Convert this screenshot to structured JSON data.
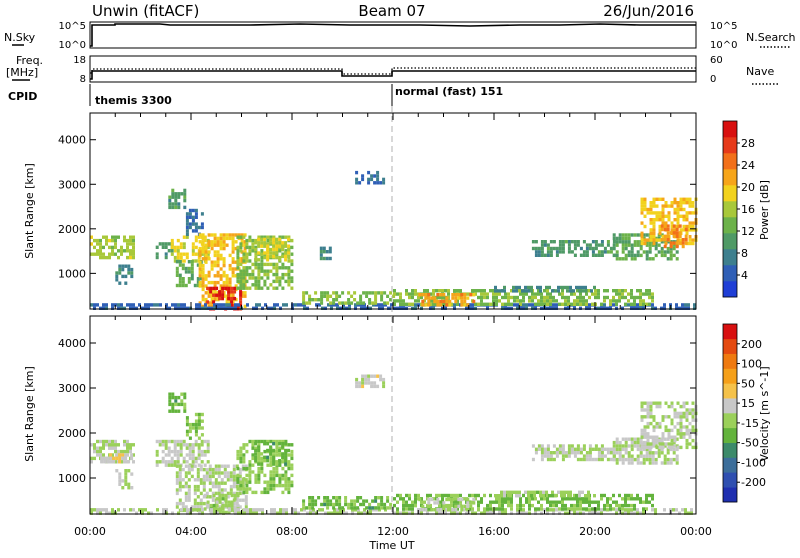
{
  "header": {
    "radar": "Unwin (fitACF)",
    "beam": "Beam 07",
    "date": "26/Jun/2016"
  },
  "strips": {
    "nsky_label": "N.Sky",
    "nsky_ticks": [
      "10^5",
      "10^0"
    ],
    "nsearch_label": "N.Search",
    "nsearch_ticks": [
      "10^5",
      "10^0"
    ],
    "freq_label_1": "Freq.",
    "freq_label_2": "[MHz]",
    "freq_ticks": [
      "18",
      "8"
    ],
    "nave_label": "Nave",
    "nave_ticks": [
      "60",
      "0"
    ],
    "cpid_label": "CPID",
    "cpid_segments": [
      "themis 3300",
      "normal (fast) 151"
    ]
  },
  "time_axis": {
    "ticks": [
      "00:00",
      "04:00",
      "08:00",
      "12:00",
      "16:00",
      "20:00",
      "00:00"
    ],
    "label": "Time UT"
  },
  "colors": {
    "power_scale": [
      "#1f3fd6",
      "#2f5fb6",
      "#3d7f8e",
      "#4f9a66",
      "#6cb24a",
      "#a8c83a",
      "#f2d21e",
      "#f6a51a",
      "#f2701a",
      "#e63a1a",
      "#d81010"
    ],
    "velocity_scale": [
      "#1f2fb0",
      "#2f4fb0",
      "#3c6e9a",
      "#3c8a6a",
      "#63b33c",
      "#9bd05a",
      "#c8c8c8",
      "#f5c24a",
      "#f5a01a",
      "#ef7a10",
      "#e44a10",
      "#d81010"
    ]
  },
  "chart_data": [
    {
      "type": "heatmap",
      "panel": "power",
      "ylabel": "Slant Range [km]",
      "yticks": [
        "4000",
        "3000",
        "2000",
        "1000"
      ],
      "ylim": [
        200,
        4600
      ],
      "x_range_hours": [
        0,
        24
      ],
      "colorbar_label": "Power [dB]",
      "colorbar_ticks": [
        "28",
        "24",
        "20",
        "16",
        "12",
        "8",
        "4"
      ],
      "colorbar_range": [
        0,
        32
      ],
      "regions": [
        {
          "t": [
            0.0,
            1.7
          ],
          "r": [
            1350,
            1850
          ],
          "v": 16
        },
        {
          "t": [
            1.0,
            1.6
          ],
          "r": [
            800,
            1200
          ],
          "v": 8
        },
        {
          "t": [
            2.6,
            3.3
          ],
          "r": [
            1350,
            1700
          ],
          "v": 10
        },
        {
          "t": [
            3.2,
            4.7
          ],
          "r": [
            1250,
            1850
          ],
          "v": 18
        },
        {
          "t": [
            3.4,
            4.4
          ],
          "r": [
            700,
            1300
          ],
          "v": 12
        },
        {
          "t": [
            3.8,
            4.4
          ],
          "r": [
            1850,
            2450
          ],
          "v": 6
        },
        {
          "t": [
            4.3,
            6.2
          ],
          "r": [
            250,
            1900
          ],
          "v": 20
        },
        {
          "t": [
            4.6,
            6.0
          ],
          "r": [
            200,
            700
          ],
          "v": 30
        },
        {
          "t": [
            5.8,
            8.0
          ],
          "r": [
            700,
            1850
          ],
          "v": 14
        },
        {
          "t": [
            6.5,
            7.9
          ],
          "r": [
            1300,
            1800
          ],
          "v": 17
        },
        {
          "t": [
            0.0,
            24.0
          ],
          "r": [
            200,
            330
          ],
          "v": 5
        },
        {
          "t": [
            8.4,
            12.0
          ],
          "r": [
            300,
            600
          ],
          "v": 14
        },
        {
          "t": [
            12.0,
            22.3
          ],
          "r": [
            300,
            650
          ],
          "v": 14
        },
        {
          "t": [
            13.0,
            15.2
          ],
          "r": [
            330,
            560
          ],
          "v": 22
        },
        {
          "t": [
            16.0,
            20.0
          ],
          "r": [
            600,
            720
          ],
          "v": 8
        },
        {
          "t": [
            17.5,
            20.8
          ],
          "r": [
            1400,
            1750
          ],
          "v": 10
        },
        {
          "t": [
            20.7,
            23.2
          ],
          "r": [
            1300,
            1900
          ],
          "v": 12
        },
        {
          "t": [
            21.8,
            24.0
          ],
          "r": [
            1650,
            2700
          ],
          "v": 20
        },
        {
          "t": [
            22.6,
            23.6
          ],
          "r": [
            1600,
            2100
          ],
          "v": 24
        },
        {
          "t": [
            9.1,
            9.5
          ],
          "r": [
            1350,
            1600
          ],
          "v": 8
        },
        {
          "t": [
            10.5,
            11.6
          ],
          "r": [
            3050,
            3300
          ],
          "v": 6
        },
        {
          "t": [
            3.1,
            3.8
          ],
          "r": [
            2500,
            2900
          ],
          "v": 10
        }
      ]
    },
    {
      "type": "heatmap",
      "panel": "velocity",
      "ylabel": "Slant Range [km]",
      "yticks": [
        "4000",
        "3000",
        "2000",
        "1000"
      ],
      "ylim": [
        200,
        4600
      ],
      "x_range_hours": [
        0,
        24
      ],
      "colorbar_label": "Velocity [m s^-1]",
      "colorbar_ticks": [
        "200",
        "100",
        "50",
        "15",
        "-15",
        "-50",
        "-100",
        "-200"
      ],
      "colorbar_range": [
        -250,
        250
      ],
      "regions": [
        {
          "t": [
            0.0,
            1.7
          ],
          "r": [
            1350,
            1850
          ],
          "v": 0
        },
        {
          "t": [
            0.4,
            1.6
          ],
          "r": [
            1350,
            1550
          ],
          "v": 35
        },
        {
          "t": [
            1.0,
            1.6
          ],
          "r": [
            800,
            1200
          ],
          "v": 0
        },
        {
          "t": [
            2.6,
            4.7
          ],
          "r": [
            1250,
            1850
          ],
          "v": 5
        },
        {
          "t": [
            3.4,
            6.2
          ],
          "r": [
            250,
            1300
          ],
          "v": 0
        },
        {
          "t": [
            4.5,
            6.0
          ],
          "r": [
            250,
            650
          ],
          "v": -15
        },
        {
          "t": [
            3.8,
            4.4
          ],
          "r": [
            1850,
            2450
          ],
          "v": -40
        },
        {
          "t": [
            5.8,
            8.0
          ],
          "r": [
            700,
            1850
          ],
          "v": -30
        },
        {
          "t": [
            6.5,
            7.9
          ],
          "r": [
            1300,
            1800
          ],
          "v": -60
        },
        {
          "t": [
            0.0,
            24.0
          ],
          "r": [
            200,
            330
          ],
          "v": 0
        },
        {
          "t": [
            8.4,
            12.0
          ],
          "r": [
            300,
            600
          ],
          "v": -55
        },
        {
          "t": [
            12.0,
            22.3
          ],
          "r": [
            300,
            650
          ],
          "v": -50
        },
        {
          "t": [
            13.0,
            15.2
          ],
          "r": [
            330,
            560
          ],
          "v": 0
        },
        {
          "t": [
            16.0,
            20.0
          ],
          "r": [
            600,
            720
          ],
          "v": -20
        },
        {
          "t": [
            17.5,
            20.8
          ],
          "r": [
            1400,
            1750
          ],
          "v": 0
        },
        {
          "t": [
            20.7,
            23.2
          ],
          "r": [
            1300,
            1900
          ],
          "v": 0
        },
        {
          "t": [
            21.8,
            24.0
          ],
          "r": [
            1650,
            2700
          ],
          "v": 0
        },
        {
          "t": [
            10.5,
            11.6
          ],
          "r": [
            3050,
            3300
          ],
          "v": 20
        },
        {
          "t": [
            3.1,
            3.8
          ],
          "r": [
            2500,
            2900
          ],
          "v": -60
        }
      ]
    }
  ]
}
